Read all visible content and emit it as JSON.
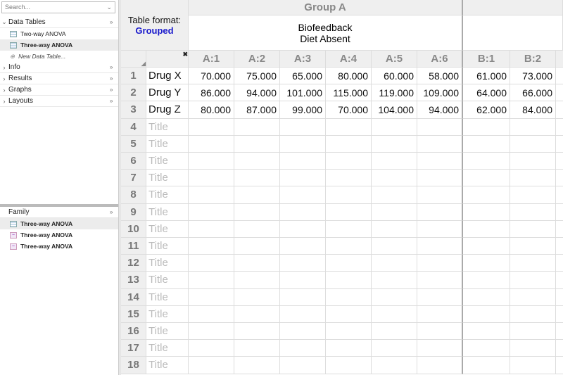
{
  "sidebar": {
    "search_placeholder": "Search...",
    "sections": [
      {
        "label": "Data Tables",
        "expanded": true
      },
      {
        "label": "Info"
      },
      {
        "label": "Results"
      },
      {
        "label": "Graphs"
      },
      {
        "label": "Layouts"
      }
    ],
    "data_tables": [
      {
        "label": "Two-way ANOVA",
        "selected": false
      },
      {
        "label": "Three-way ANOVA",
        "selected": true
      }
    ],
    "new_table": "New Data Table...",
    "family": {
      "label": "Family",
      "items": [
        {
          "label": "Three-way ANOVA",
          "icon": "table-icon"
        },
        {
          "label": "Three-way ANOVA",
          "icon": "graph-icon"
        },
        {
          "label": "Three-way ANOVA",
          "icon": "graph-icon"
        }
      ]
    }
  },
  "grid": {
    "table_format_label": "Table format:",
    "table_format_value": "Grouped",
    "group_a": "Group A",
    "group_a_sub1": "Biofeedback",
    "group_a_sub2": "Diet Absent",
    "columns": [
      "A:1",
      "A:2",
      "A:3",
      "A:4",
      "A:5",
      "A:6",
      "B:1",
      "B:2"
    ],
    "rows": [
      {
        "n": "1",
        "title": "Drug X",
        "values": [
          "70.000",
          "75.000",
          "65.000",
          "80.000",
          "60.000",
          "58.000",
          "61.000",
          "73.000"
        ]
      },
      {
        "n": "2",
        "title": "Drug Y",
        "values": [
          "86.000",
          "94.000",
          "101.000",
          "115.000",
          "119.000",
          "109.000",
          "64.000",
          "66.000"
        ]
      },
      {
        "n": "3",
        "title": "Drug Z",
        "values": [
          "80.000",
          "87.000",
          "99.000",
          "70.000",
          "104.000",
          "94.000",
          "62.000",
          "84.000"
        ]
      }
    ],
    "empty_rows": [
      "4",
      "5",
      "6",
      "7",
      "8",
      "9",
      "10",
      "11",
      "12",
      "13",
      "14",
      "15",
      "16",
      "17",
      "18"
    ],
    "title_placeholder": "Title",
    "accent": "#1a1acc"
  }
}
